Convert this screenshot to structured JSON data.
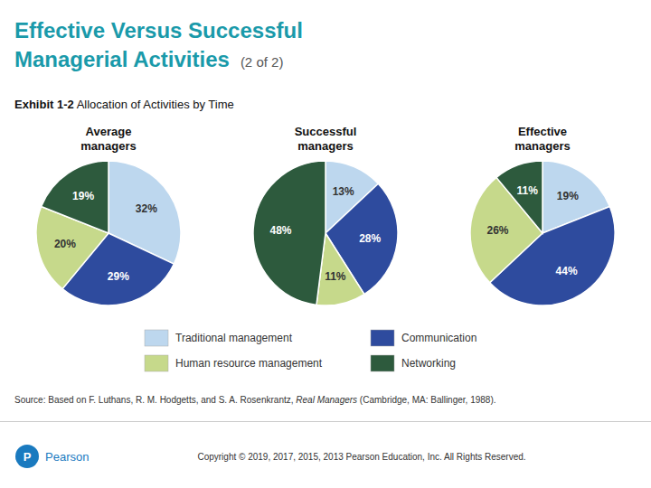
{
  "title": "Effective Versus Successful\nManagerial Activities",
  "subtitle": "(2 of 2)",
  "annotations": [
    "Exhibit 1-2",
    " Allocation of Activities by Time",
    "Source: Based on F. Luthans, R. M. Hodgetts, and S. A. Rosenkrantz, ",
    "Real Managers",
    " (Cambridge, MA: Ballinger, 1988).",
    "P",
    "Pearson",
    "Copyright © 2019, 2017, 2015, 2013 Pearson Education, Inc. All Rights Reserved."
  ],
  "chart_data": [
    {
      "type": "pie",
      "title": "Average\nmanagers",
      "categories": [
        "Traditional management",
        "Communication",
        "Human resource management",
        "Networking"
      ],
      "values": [
        32,
        29,
        20,
        19
      ],
      "value_labels": [
        "32%",
        "29%",
        "20%",
        "19%"
      ],
      "colors": [
        "#bdd7ee",
        "#2e4b9e",
        "#c6d98b",
        "#2d5a3d"
      ],
      "data_labels": true,
      "legend": "bottom"
    },
    {
      "type": "pie",
      "title": "Successful\nmanagers",
      "categories": [
        "Traditional management",
        "Communication",
        "Human resource management",
        "Networking"
      ],
      "values": [
        13,
        28,
        11,
        48
      ],
      "value_labels": [
        "13%",
        "28%",
        "11%",
        "48%"
      ],
      "colors": [
        "#bdd7ee",
        "#2e4b9e",
        "#c6d98b",
        "#2d5a3d"
      ],
      "data_labels": true,
      "legend": "bottom"
    },
    {
      "type": "pie",
      "title": "Effective\nmanagers",
      "categories": [
        "Traditional management",
        "Communication",
        "Human resource management",
        "Networking"
      ],
      "values": [
        19,
        44,
        26,
        11
      ],
      "value_labels": [
        "19%",
        "44%",
        "26%",
        "11%"
      ],
      "colors": [
        "#bdd7ee",
        "#2e4b9e",
        "#c6d98b",
        "#2d5a3d"
      ],
      "data_labels": true,
      "legend": "bottom"
    }
  ]
}
